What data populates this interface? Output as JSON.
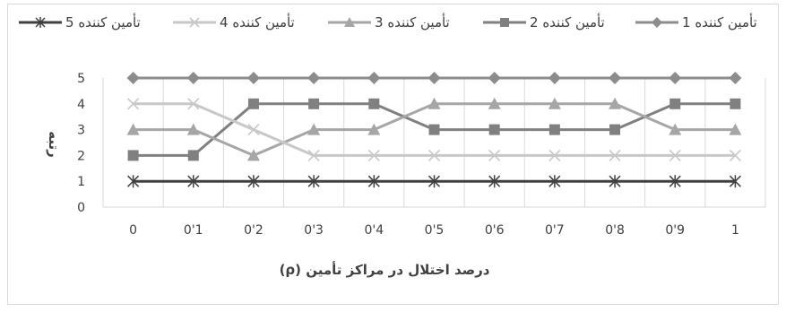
{
  "chart_data": {
    "type": "line",
    "title": "",
    "xlabel": "درصد اختلال در مراکز تأمین (ρ)",
    "ylabel": "رتبه",
    "categories": [
      "0",
      "0'1",
      "0'2",
      "0'3",
      "0'4",
      "0'5",
      "0'6",
      "0'7",
      "0'8",
      "0'9",
      "1"
    ],
    "yticks": [
      0,
      1,
      2,
      3,
      4,
      5
    ],
    "ylim": [
      0,
      5
    ],
    "grid": "vertical",
    "legend": "top",
    "series": [
      {
        "name": "تأمین کننده 1",
        "marker": "diamond",
        "color": "#8c8c8c",
        "values": [
          5,
          5,
          5,
          5,
          5,
          5,
          5,
          5,
          5,
          5,
          5
        ]
      },
      {
        "name": "تأمین کننده 2",
        "marker": "square",
        "color": "#808080",
        "values": [
          2,
          2,
          4,
          4,
          4,
          3,
          3,
          3,
          3,
          4,
          4
        ]
      },
      {
        "name": "تأمین کننده 3",
        "marker": "triangle",
        "color": "#a6a6a6",
        "values": [
          3,
          3,
          2,
          3,
          3,
          4,
          4,
          4,
          4,
          3,
          3
        ]
      },
      {
        "name": "تأمین کننده 4",
        "marker": "x",
        "color": "#c8c8c8",
        "values": [
          4,
          4,
          3,
          2,
          2,
          2,
          2,
          2,
          2,
          2,
          2
        ]
      },
      {
        "name": "تأمین کننده 5",
        "marker": "star",
        "color": "#404040",
        "values": [
          1,
          1,
          1,
          1,
          1,
          1,
          1,
          1,
          1,
          1,
          1
        ]
      }
    ]
  }
}
